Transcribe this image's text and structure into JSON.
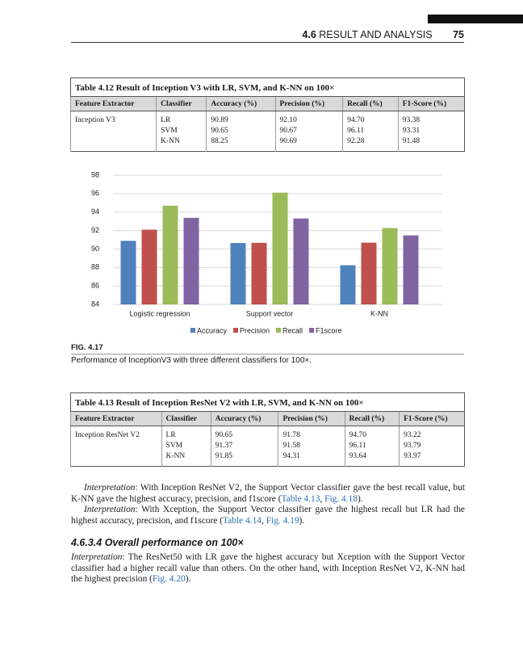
{
  "header": {
    "section": "4.6",
    "title": "RESULT AND ANALYSIS",
    "page": "75"
  },
  "tables": [
    {
      "caption": "Table 4.12 Result of Inception V3 with LR, SVM, and K-NN on 100×",
      "columns": [
        "Feature Extractor",
        "Classifier",
        "Accuracy (%)",
        "Precision (%)",
        "Recall (%)",
        "F1-Score (%)"
      ],
      "feature": "Inception V3",
      "rows": [
        [
          "LR",
          "90.89",
          "92.10",
          "94.70",
          "93.38"
        ],
        [
          "SVM",
          "90.65",
          "90.67",
          "96.11",
          "93.31"
        ],
        [
          "K-NN",
          "88.25",
          "90.69",
          "92.28",
          "91.48"
        ]
      ]
    },
    {
      "caption": "Table 4.13 Result of Inception ResNet V2 with LR, SVM, and K-NN on 100×",
      "columns": [
        "Feature Extractor",
        "Classifier",
        "Accuracy (%)",
        "Precision (%)",
        "Recall (%)",
        "F1-Score (%)"
      ],
      "feature": "Inception ResNet V2",
      "rows": [
        [
          "LR",
          "90.65",
          "91.78",
          "94.70",
          "93.22"
        ],
        [
          "SVM",
          "91.37",
          "91.58",
          "96.11",
          "93.79"
        ],
        [
          "K-NN",
          "91.85",
          "94.31",
          "93.64",
          "93.97"
        ]
      ]
    }
  ],
  "chart_data": {
    "type": "bar",
    "categories": [
      "Logistic regression",
      "Support vector",
      "K-NN"
    ],
    "series": [
      {
        "name": "Accuracy",
        "color": "#4f81bd",
        "values": [
          90.89,
          90.65,
          88.25
        ]
      },
      {
        "name": "Precision",
        "color": "#c0504d",
        "values": [
          92.1,
          90.67,
          90.69
        ]
      },
      {
        "name": "Recall",
        "color": "#9bbb59",
        "values": [
          94.7,
          96.11,
          92.28
        ]
      },
      {
        "name": "F1score",
        "color": "#8064a2",
        "values": [
          93.38,
          93.31,
          91.48
        ]
      }
    ],
    "ylim": [
      84,
      98
    ],
    "yticks": [
      84,
      86,
      88,
      90,
      92,
      94,
      96,
      98
    ],
    "grid": true,
    "legend": "bottom"
  },
  "figure": {
    "label": "FIG. 4.17",
    "caption": "Performance of InceptionV3 with three different classifiers for 100×."
  },
  "body": {
    "paragraphs": [
      [
        {
          "em": "Interpretation"
        },
        {
          "text": ": With Inception ResNet V2, the Support Vector classifier gave the best recall value, but K-NN gave the highest accuracy, precision, and f1score ("
        },
        {
          "link": "Table 4.13"
        },
        {
          "text": ", "
        },
        {
          "link": "Fig. 4.18"
        },
        {
          "text": ")."
        }
      ],
      [
        {
          "em": "Interpretation"
        },
        {
          "text": ": With Xception, the Support Vector classifier gave the highest recall but LR had the highest accuracy, precision, and f1score ("
        },
        {
          "link": "Table 4.14"
        },
        {
          "text": ", "
        },
        {
          "link": "Fig. 4.19"
        },
        {
          "text": ")."
        }
      ]
    ],
    "heading": "4.6.3.4 Overall performance on 100×",
    "closing": [
      {
        "em": "Interpretation"
      },
      {
        "text": ": The ResNet50 with LR gave the highest accuracy but Xception with the Support Vector classifier had a higher recall value than others. On the other hand, with Inception ResNet V2, K-NN had the highest precision ("
      },
      {
        "link": "Fig. 4.20"
      },
      {
        "text": ")."
      }
    ]
  }
}
